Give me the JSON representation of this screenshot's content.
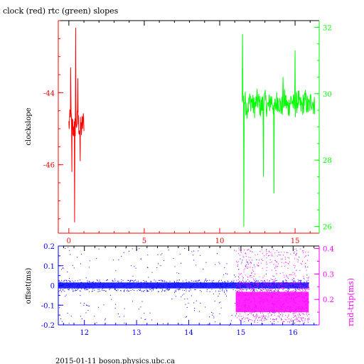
{
  "chart_data": [
    {
      "type": "line",
      "title": "clock (red) rtc (green) slopes",
      "ylabel_left": "clockslope",
      "xlabel": "",
      "xlim": [
        -0.7,
        16.6
      ],
      "ylim_left": [
        -47.9,
        -42.0
      ],
      "ylim_right": [
        25.8,
        32.2
      ],
      "xticks": [
        0,
        5,
        10,
        15
      ],
      "yticks_left": [
        -44,
        -46
      ],
      "yticks_right": [
        32,
        30,
        28,
        26
      ],
      "axis_colors": {
        "x": "#ff0000",
        "left": "#ff0000",
        "right": "#00ff00"
      },
      "series": [
        {
          "color": "#ff0000",
          "axis": "left",
          "x_range": [
            0.0,
            1.0
          ],
          "center": -44.9,
          "spread": 0.35,
          "spikes": [
            [
              0.12,
              -43.3
            ],
            [
              0.2,
              -46.2
            ],
            [
              0.38,
              -47.6
            ],
            [
              0.45,
              -42.2
            ],
            [
              0.6,
              -43.6
            ],
            [
              0.75,
              -45.9
            ]
          ]
        },
        {
          "color": "#00ff00",
          "axis": "right",
          "x_range": [
            11.5,
            16.3
          ],
          "center": 29.7,
          "spread": 0.35,
          "spikes": [
            [
              11.52,
              31.8
            ],
            [
              11.6,
              26.0
            ],
            [
              12.9,
              27.5
            ],
            [
              13.6,
              27.0
            ],
            [
              14.2,
              30.5
            ],
            [
              15.0,
              31.3
            ],
            [
              15.3,
              29.8
            ]
          ]
        }
      ]
    },
    {
      "type": "scatter",
      "ylabel_left": "offset(ms)",
      "ylabel_right": "rnd-trip(ms)",
      "xlim": [
        11.5,
        16.5
      ],
      "ylim_left": [
        -0.2,
        0.2
      ],
      "ylim_right": [
        0.1,
        0.41
      ],
      "xticks": [
        12,
        13,
        14,
        15,
        16
      ],
      "yticks_left": [
        0.2,
        0.1,
        0,
        -0.1,
        -0.2
      ],
      "yticks_left_labels": [
        "0.2",
        "0.1",
        "0",
        "-0.1",
        "-0.2"
      ],
      "yticks_right": [
        0.4,
        0.3,
        0.2
      ],
      "yticks_right_labels": [
        "0.4",
        "0.3",
        "0.2"
      ],
      "axis_colors": {
        "x": "#0000ff",
        "left": "#0000ff",
        "right": "#ff00ff"
      },
      "series": [
        {
          "color": "#0000ff",
          "axis": "left",
          "x_range": [
            11.5,
            16.3
          ],
          "band": [
            -0.015,
            0.015
          ],
          "outlier_range": [
            -0.2,
            0.2
          ]
        },
        {
          "color": "#ff00ff",
          "axis": "right",
          "x_range": [
            14.9,
            16.3
          ],
          "band": [
            0.15,
            0.23
          ],
          "outlier_range": [
            0.23,
            0.4
          ]
        }
      ]
    }
  ],
  "footer": {
    "text": "2015-01-11 boson.physics.ubc.ca"
  }
}
